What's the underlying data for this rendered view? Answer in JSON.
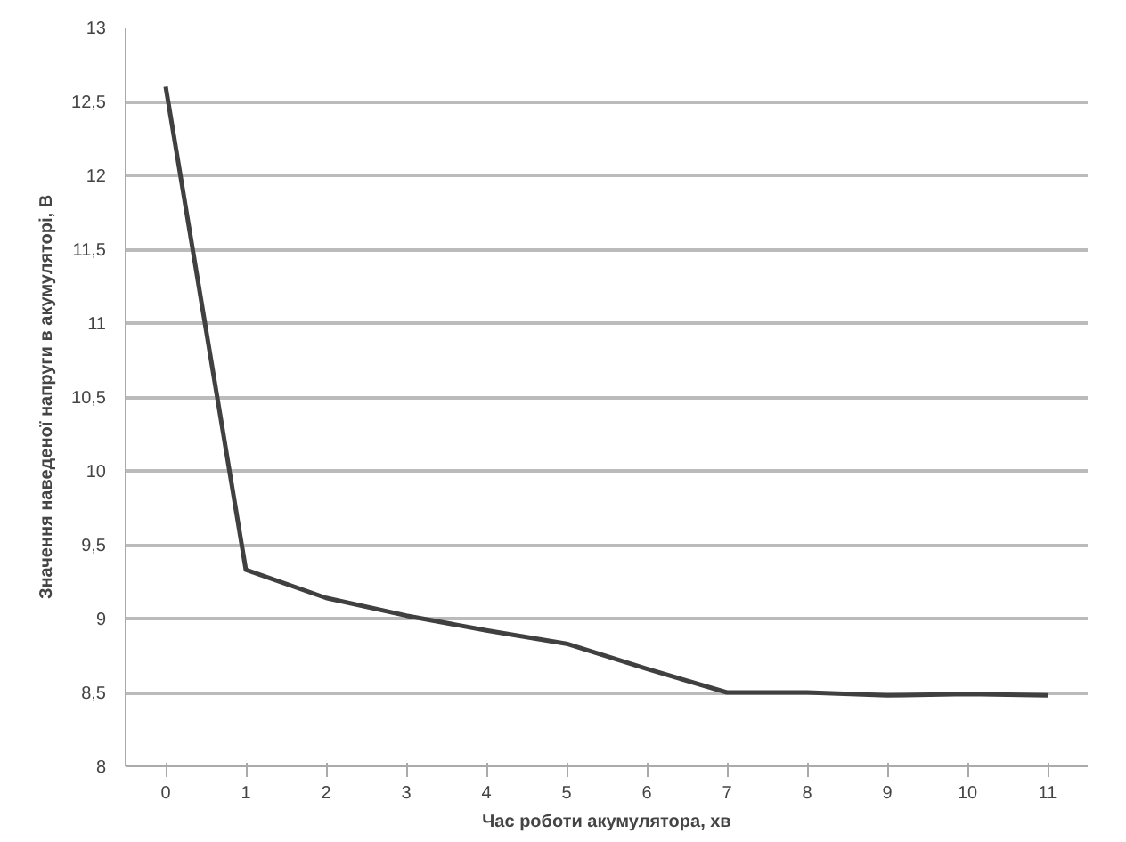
{
  "chart_data": {
    "type": "line",
    "xlabel": "Час роботи акумулятора, хв",
    "ylabel": "Значення наведеної напруги в акумуляторі, В",
    "categories": [
      "0",
      "1",
      "2",
      "3",
      "4",
      "5",
      "6",
      "7",
      "8",
      "9",
      "10",
      "11"
    ],
    "series": [
      {
        "color": "#404040",
        "values": [
          12.6,
          9.33,
          9.14,
          9.02,
          8.92,
          8.83,
          8.66,
          8.5,
          8.5,
          8.48,
          8.49,
          8.48
        ]
      }
    ],
    "ylim": [
      8,
      13
    ],
    "yticks": [
      8,
      {
        "value": 8.5,
        "label": "8,5"
      },
      9,
      {
        "value": 9.5,
        "label": "9,5"
      },
      10,
      {
        "value": 10.5,
        "label": "10,5"
      },
      11,
      {
        "value": 11.5,
        "label": "11,5"
      },
      12,
      {
        "value": 12.5,
        "label": "12,5"
      },
      13
    ],
    "grid": "y",
    "marker": "none",
    "line_style": "solid"
  }
}
